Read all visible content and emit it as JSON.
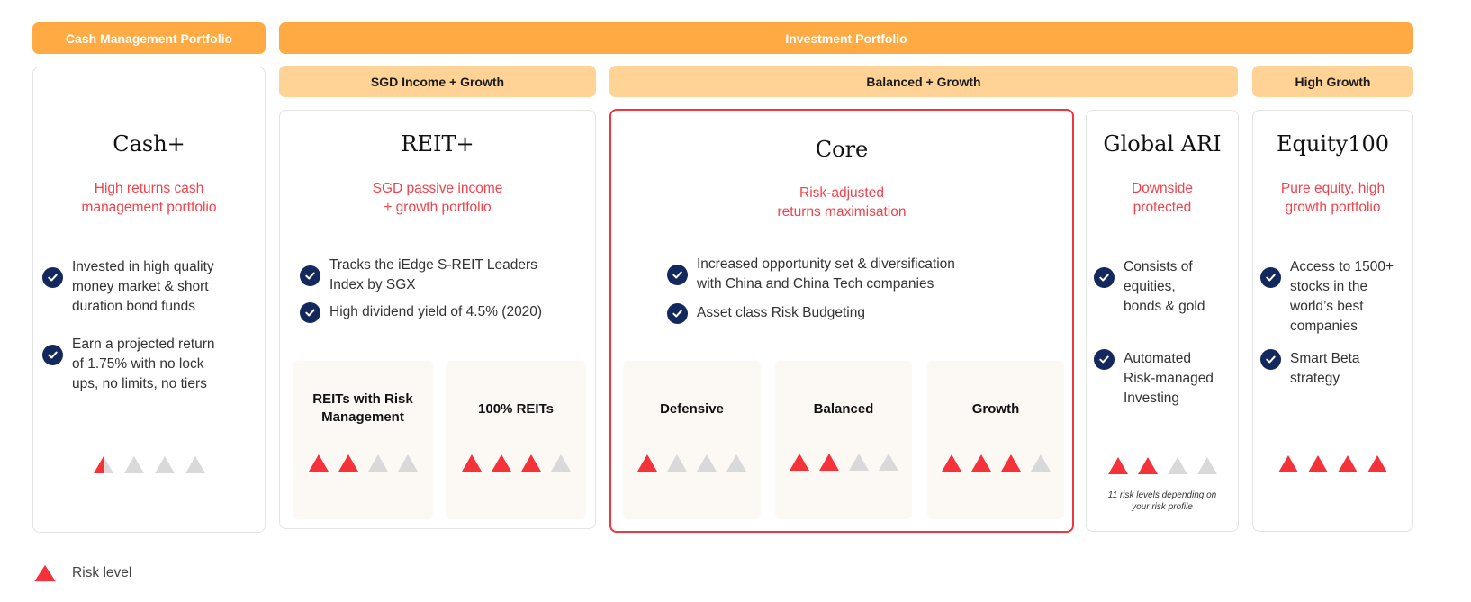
{
  "colors": {
    "banner_primary": "#FFAA42",
    "banner_secondary": "#FFD396",
    "accent_red": "#F0363F",
    "risk_on": "#F5323A",
    "risk_off": "#D9D9D9",
    "check": "#13285C",
    "panel_bg": "#FCF8F4"
  },
  "banners": {
    "cash_management": "Cash Management Portfolio",
    "investment": "Investment Portfolio",
    "sgd_income_growth": "SGD Income + Growth",
    "balanced_growth": "Balanced + Growth",
    "high_growth": "High Growth"
  },
  "cards": {
    "cash": {
      "title": "Cash+",
      "subtitle": "High returns cash\nmanagement portfolio",
      "bullets": [
        "Invested in high quality\nmoney market & short\nduration bond funds",
        "Earn a projected return\nof 1.75% with no lock\nups, no limits, no tiers"
      ],
      "risk_level": 0.5,
      "risk_max": 4
    },
    "reit": {
      "title": "REIT+",
      "subtitle": "SGD passive income\n+ growth portfolio",
      "bullets": [
        "Tracks the iEdge S-REIT Leaders\nIndex by SGX",
        "High dividend yield of 4.5% (2020)"
      ],
      "panels": [
        {
          "label": "REITs with Risk\nManagement",
          "risk_level": 2,
          "risk_max": 4
        },
        {
          "label": "100% REITs",
          "risk_level": 3,
          "risk_max": 4
        }
      ]
    },
    "core": {
      "title": "Core",
      "subtitle": "Risk-adjusted\nreturns maximisation",
      "bullets": [
        "Increased opportunity set & diversification\nwith China and China Tech companies",
        "Asset class Risk Budgeting"
      ],
      "panels": [
        {
          "label": "Defensive",
          "risk_level": 1,
          "risk_max": 4
        },
        {
          "label": "Balanced",
          "risk_level": 2,
          "risk_max": 4
        },
        {
          "label": "Growth",
          "risk_level": 3,
          "risk_max": 4
        }
      ]
    },
    "global_ari": {
      "title": "Global ARI",
      "subtitle": "Downside\nprotected",
      "bullets": [
        "Consists of\nequities,\nbonds & gold",
        "Automated\nRisk-managed\nInvesting"
      ],
      "risk_level": 2,
      "risk_max": 4,
      "note": "11 risk levels depending on\nyour risk profile"
    },
    "equity100": {
      "title": "Equity100",
      "subtitle": "Pure equity, high\ngrowth portfolio",
      "bullets": [
        "Access to 1500+\nstocks in the\nworld’s best\ncompanies",
        "Smart Beta\nstrategy"
      ],
      "risk_level": 4,
      "risk_max": 4
    }
  },
  "legend": {
    "icon": "risk-triangle-icon",
    "label": "Risk level"
  }
}
